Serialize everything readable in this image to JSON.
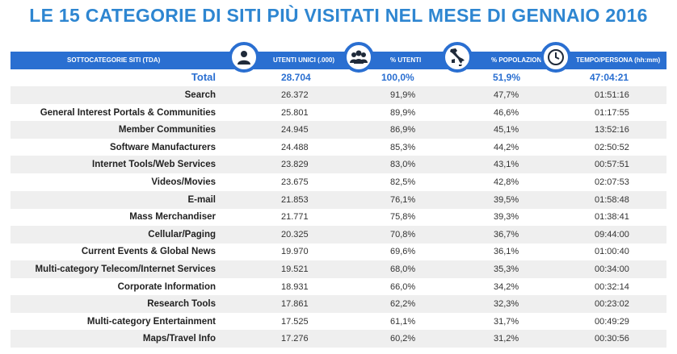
{
  "title": "LE 15 CATEGORIE DI SITI PIÙ VISITATI NEL MESE DI GENNAIO 2016",
  "header": {
    "col_category": "SOTTOCATEGORIE SITI  (TDA)",
    "col_users": "UTENTI UNICI (.000)",
    "col_pct_users": "% UTENTI",
    "col_pct_pop": "% POPOLAZIONE",
    "col_time": "TEMPO/PERSONA  (hh:mm)"
  },
  "icons": {
    "users": "person-icon",
    "pct_users": "group-icon",
    "pct_pop": "italy-map-icon",
    "time": "clock-icon",
    "accent": "#2a6fd1",
    "title_color": "#2e86d1"
  },
  "chart_data": {
    "type": "table",
    "columns": [
      "SOTTOCATEGORIE SITI  (TDA)",
      "UTENTI UNICI (.000)",
      "% UTENTI",
      "% POPOLAZIONE",
      "TEMPO/PERSONA  (hh:mm)"
    ],
    "total": {
      "category": "Total",
      "users": "28.704",
      "pct_users": "100,0%",
      "pct_pop": "51,9%",
      "time": "47:04:21"
    },
    "rows": [
      {
        "category": "Search",
        "users": "26.372",
        "pct_users": "91,9%",
        "pct_pop": "47,7%",
        "time": "01:51:16"
      },
      {
        "category": "General Interest Portals & Communities",
        "users": "25.801",
        "pct_users": "89,9%",
        "pct_pop": "46,6%",
        "time": "01:17:55"
      },
      {
        "category": "Member Communities",
        "users": "24.945",
        "pct_users": "86,9%",
        "pct_pop": "45,1%",
        "time": "13:52:16"
      },
      {
        "category": "Software Manufacturers",
        "users": "24.488",
        "pct_users": "85,3%",
        "pct_pop": "44,2%",
        "time": "02:50:52"
      },
      {
        "category": "Internet Tools/Web Services",
        "users": "23.829",
        "pct_users": "83,0%",
        "pct_pop": "43,1%",
        "time": "00:57:51"
      },
      {
        "category": "Videos/Movies",
        "users": "23.675",
        "pct_users": "82,5%",
        "pct_pop": "42,8%",
        "time": "02:07:53"
      },
      {
        "category": "E-mail",
        "users": "21.853",
        "pct_users": "76,1%",
        "pct_pop": "39,5%",
        "time": "01:58:48"
      },
      {
        "category": "Mass Merchandiser",
        "users": "21.771",
        "pct_users": "75,8%",
        "pct_pop": "39,3%",
        "time": "01:38:41"
      },
      {
        "category": "Cellular/Paging",
        "users": "20.325",
        "pct_users": "70,8%",
        "pct_pop": "36,7%",
        "time": "09:44:00"
      },
      {
        "category": "Current Events & Global News",
        "users": "19.970",
        "pct_users": "69,6%",
        "pct_pop": "36,1%",
        "time": "01:00:40"
      },
      {
        "category": "Multi-category Telecom/Internet Services",
        "users": "19.521",
        "pct_users": "68,0%",
        "pct_pop": "35,3%",
        "time": "00:34:00"
      },
      {
        "category": "Corporate Information",
        "users": "18.931",
        "pct_users": "66,0%",
        "pct_pop": "34,2%",
        "time": "00:32:14"
      },
      {
        "category": "Research Tools",
        "users": "17.861",
        "pct_users": "62,2%",
        "pct_pop": "32,3%",
        "time": "00:23:02"
      },
      {
        "category": "Multi-category Entertainment",
        "users": "17.525",
        "pct_users": "61,1%",
        "pct_pop": "31,7%",
        "time": "00:49:29"
      },
      {
        "category": "Maps/Travel Info",
        "users": "17.276",
        "pct_users": "60,2%",
        "pct_pop": "31,2%",
        "time": "00:30:56"
      }
    ]
  }
}
